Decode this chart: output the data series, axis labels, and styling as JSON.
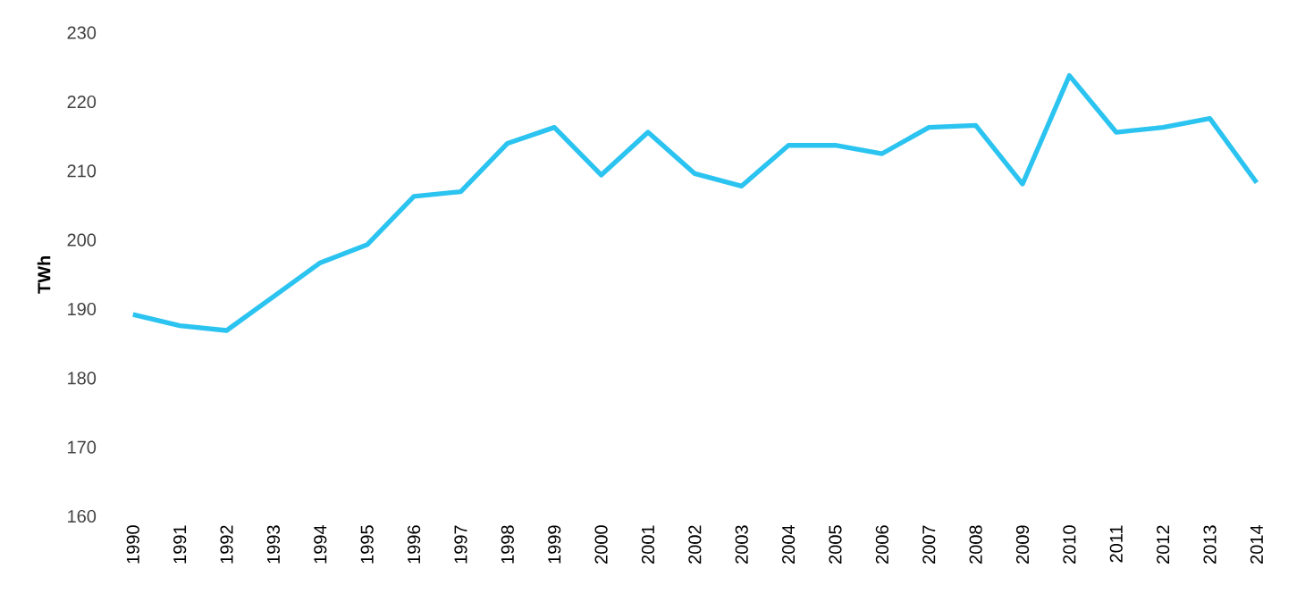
{
  "chart_data": {
    "type": "line",
    "ylabel": "TWh",
    "categories": [
      "1990",
      "1991",
      "1992",
      "1993",
      "1994",
      "1995",
      "1996",
      "1997",
      "1998",
      "1999",
      "2000",
      "2001",
      "2002",
      "2003",
      "2004",
      "2005",
      "2006",
      "2007",
      "2008",
      "2009",
      "2010",
      "2011",
      "2012",
      "2013",
      "2014"
    ],
    "series": [
      {
        "color": "#2bc3f0",
        "values": [
          189.2,
          187.6,
          186.9,
          191.8,
          196.7,
          199.3,
          206.3,
          207.0,
          214.0,
          216.3,
          209.4,
          215.6,
          209.6,
          207.8,
          213.7,
          213.7,
          212.5,
          216.3,
          216.6,
          208.1,
          223.8,
          215.6,
          216.3,
          217.6,
          208.3
        ]
      }
    ],
    "ylim": [
      160,
      230
    ],
    "yticks": [
      160,
      170,
      180,
      190,
      200,
      210,
      220,
      230
    ],
    "grid": false,
    "marker": "none",
    "line_style": "solid"
  }
}
